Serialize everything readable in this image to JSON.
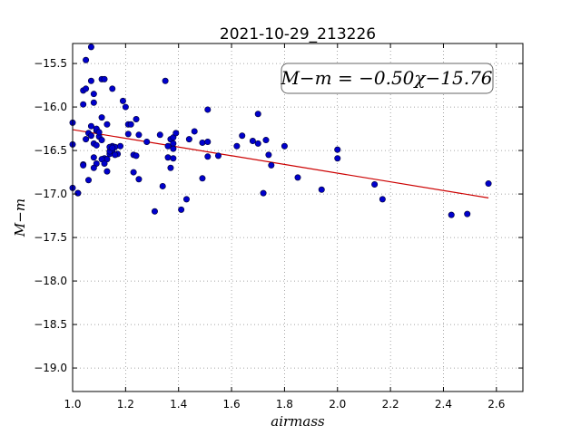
{
  "chart_data": {
    "type": "scatter",
    "title": "2021-10-29_213226",
    "xlabel": "airmass",
    "ylabel": "M−m",
    "xlim": [
      1.0,
      2.7
    ],
    "ylim": [
      -19.27,
      -15.27
    ],
    "y_inverted": true,
    "grid": true,
    "x_ticks": [
      1.0,
      1.2,
      1.4,
      1.6,
      1.8,
      2.0,
      2.2,
      2.4,
      2.6
    ],
    "x_tick_labels": [
      "1.0",
      "1.2",
      "1.4",
      "1.6",
      "1.8",
      "2.0",
      "2.2",
      "2.4",
      "2.6"
    ],
    "y_ticks": [
      -15.5,
      -16.0,
      -16.5,
      -17.0,
      -17.5,
      -18.0,
      -18.5,
      -19.0
    ],
    "y_tick_labels": [
      "−15.5",
      "−16.0",
      "−16.5",
      "−17.0",
      "−17.5",
      "−18.0",
      "−18.5",
      "−19.0"
    ],
    "annotation": "M−m = −0.50χ−15.76",
    "point_color": "#0000cc",
    "line_color": "#cc0000",
    "fit": {
      "slope": -0.5,
      "intercept": -15.76,
      "x_range": [
        1.0,
        2.57
      ]
    },
    "series": [
      {
        "x": [
          1.07,
          1.05,
          1.04,
          1.07,
          1.08,
          1.11,
          1.12,
          1.05,
          1.04,
          1.08,
          1.19,
          1.15,
          1.07,
          1.13,
          1.11,
          1.09,
          1.2,
          1.21,
          1.22,
          1.24,
          1.35,
          1.51,
          1.7,
          1.0,
          1.0,
          1.02,
          1.05,
          1.06,
          1.07,
          1.09,
          1.1,
          1.1,
          1.11,
          1.08,
          1.09,
          1.08,
          1.12,
          1.14,
          1.15,
          1.16,
          1.17,
          1.18,
          1.21,
          1.25,
          1.28,
          1.33,
          1.37,
          1.38,
          1.39,
          1.38,
          1.36,
          1.38,
          1.46,
          1.44,
          1.49,
          1.51,
          1.64,
          1.68,
          1.7,
          1.73,
          1.62,
          1.8,
          1.74,
          1.75,
          2.0,
          2.0,
          1.55,
          1.36,
          1.37,
          1.38,
          1.23,
          1.24,
          1.23,
          1.25,
          1.15,
          1.14,
          1.13,
          1.11,
          1.09,
          1.08,
          1.16,
          1.14,
          1.15,
          1.13,
          1.12,
          1.51,
          1.49,
          1.85,
          1.34,
          1.43,
          1.41,
          1.31,
          1.72,
          1.94,
          2.14,
          2.17,
          1.0,
          1.02,
          1.04,
          1.04,
          2.43,
          2.49,
          2.57,
          1.06
        ],
        "y": [
          -15.31,
          -15.46,
          -15.81,
          -15.7,
          -15.85,
          -15.68,
          -15.68,
          -15.79,
          -15.97,
          -15.95,
          -15.93,
          -15.79,
          -16.22,
          -16.2,
          -16.12,
          -16.27,
          -16.0,
          -16.2,
          -16.2,
          -16.14,
          -15.7,
          -16.03,
          -16.08,
          -16.18,
          -16.43,
          -16.99,
          -16.37,
          -16.3,
          -16.33,
          -16.25,
          -16.34,
          -16.29,
          -16.38,
          -16.42,
          -16.44,
          -16.58,
          -16.59,
          -16.54,
          -16.45,
          -16.46,
          -16.54,
          -16.45,
          -16.31,
          -16.32,
          -16.4,
          -16.32,
          -16.37,
          -16.35,
          -16.3,
          -16.42,
          -16.45,
          -16.48,
          -16.28,
          -16.37,
          -16.41,
          -16.4,
          -16.33,
          -16.39,
          -16.42,
          -16.38,
          -16.45,
          -16.45,
          -16.55,
          -16.67,
          -16.49,
          -16.59,
          -16.56,
          -16.58,
          -16.7,
          -16.59,
          -16.55,
          -16.56,
          -16.75,
          -16.83,
          -16.5,
          -16.51,
          -16.6,
          -16.6,
          -16.65,
          -16.7,
          -16.55,
          -16.46,
          -16.47,
          -16.74,
          -16.65,
          -16.57,
          -16.82,
          -16.81,
          -16.91,
          -17.06,
          -17.18,
          -17.2,
          -16.99,
          -16.95,
          -16.89,
          -17.06,
          -16.93,
          -16.99,
          -16.66,
          -16.67,
          -17.24,
          -17.23,
          -16.88,
          -16.84
        ]
      }
    ]
  }
}
